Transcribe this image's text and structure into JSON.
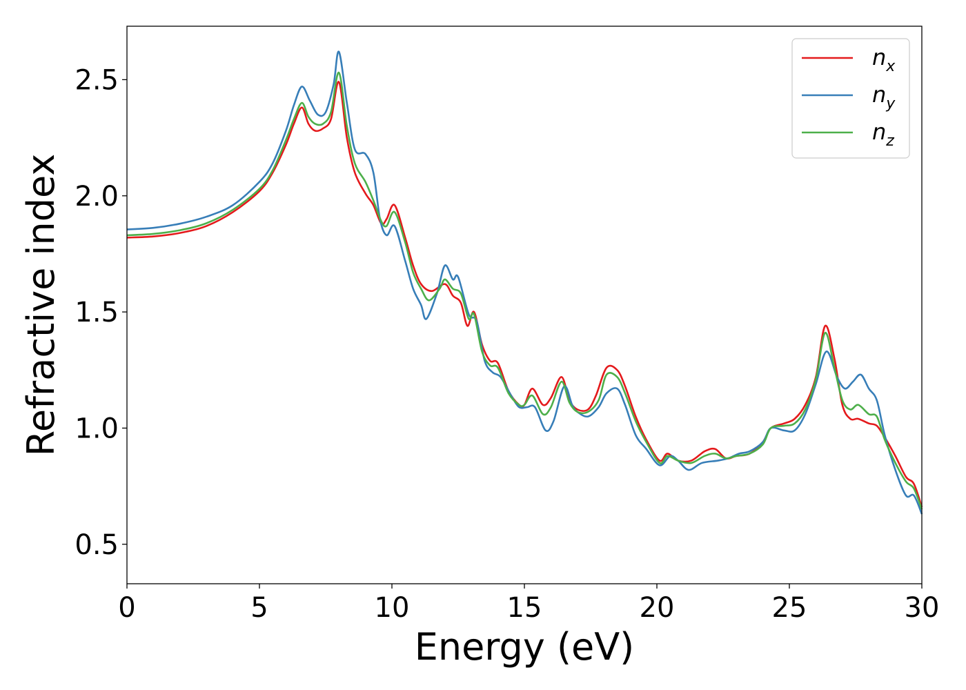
{
  "chart_data": {
    "type": "line",
    "title": "",
    "xlabel": "Energy (eV)",
    "ylabel": "Refractive index",
    "xlim": [
      0,
      30
    ],
    "ylim": [
      0.33,
      2.73
    ],
    "xticks": [
      0,
      5,
      10,
      15,
      20,
      25,
      30
    ],
    "xtick_labels": [
      "0",
      "5",
      "10",
      "15",
      "20",
      "25",
      "30"
    ],
    "yticks": [
      0.5,
      1.0,
      1.5,
      2.0,
      2.5
    ],
    "ytick_labels": [
      "0.5",
      "1.0",
      "1.5",
      "2.0",
      "2.5"
    ],
    "grid": false,
    "legend": {
      "position": "top-right"
    },
    "series": [
      {
        "name": "n_x",
        "base": "n",
        "sub": "x",
        "color": "#e41a1c",
        "points": [
          [
            0,
            1.82
          ],
          [
            1,
            1.825
          ],
          [
            2,
            1.84
          ],
          [
            3,
            1.87
          ],
          [
            4,
            1.93
          ],
          [
            5,
            2.02
          ],
          [
            5.5,
            2.1
          ],
          [
            6,
            2.22
          ],
          [
            6.3,
            2.31
          ],
          [
            6.6,
            2.38
          ],
          [
            6.85,
            2.31
          ],
          [
            7.1,
            2.28
          ],
          [
            7.4,
            2.29
          ],
          [
            7.7,
            2.33
          ],
          [
            8.0,
            2.49
          ],
          [
            8.3,
            2.25
          ],
          [
            8.6,
            2.1
          ],
          [
            9.0,
            2.01
          ],
          [
            9.3,
            1.96
          ],
          [
            9.6,
            1.88
          ],
          [
            9.8,
            1.9
          ],
          [
            10.1,
            1.96
          ],
          [
            10.5,
            1.82
          ],
          [
            10.8,
            1.7
          ],
          [
            11.1,
            1.62
          ],
          [
            11.5,
            1.59
          ],
          [
            12.0,
            1.62
          ],
          [
            12.3,
            1.57
          ],
          [
            12.6,
            1.54
          ],
          [
            12.85,
            1.44
          ],
          [
            13.1,
            1.5
          ],
          [
            13.4,
            1.36
          ],
          [
            13.7,
            1.29
          ],
          [
            14.0,
            1.28
          ],
          [
            14.4,
            1.16
          ],
          [
            14.8,
            1.1
          ],
          [
            15.0,
            1.1
          ],
          [
            15.3,
            1.17
          ],
          [
            15.7,
            1.1
          ],
          [
            16.0,
            1.13
          ],
          [
            16.4,
            1.22
          ],
          [
            16.7,
            1.12
          ],
          [
            17.0,
            1.08
          ],
          [
            17.4,
            1.08
          ],
          [
            17.7,
            1.14
          ],
          [
            18.1,
            1.26
          ],
          [
            18.5,
            1.25
          ],
          [
            18.8,
            1.18
          ],
          [
            19.2,
            1.05
          ],
          [
            19.6,
            0.95
          ],
          [
            20.1,
            0.86
          ],
          [
            20.4,
            0.89
          ],
          [
            20.8,
            0.86
          ],
          [
            21.3,
            0.86
          ],
          [
            21.8,
            0.9
          ],
          [
            22.2,
            0.91
          ],
          [
            22.6,
            0.87
          ],
          [
            23.0,
            0.88
          ],
          [
            23.5,
            0.89
          ],
          [
            24.0,
            0.94
          ],
          [
            24.3,
            1.0
          ],
          [
            24.8,
            1.02
          ],
          [
            25.2,
            1.04
          ],
          [
            25.6,
            1.1
          ],
          [
            26.0,
            1.22
          ],
          [
            26.35,
            1.44
          ],
          [
            26.7,
            1.3
          ],
          [
            27.0,
            1.1
          ],
          [
            27.3,
            1.04
          ],
          [
            27.6,
            1.04
          ],
          [
            28.0,
            1.02
          ],
          [
            28.3,
            1.01
          ],
          [
            28.6,
            0.96
          ],
          [
            29.0,
            0.88
          ],
          [
            29.4,
            0.79
          ],
          [
            29.7,
            0.76
          ],
          [
            30,
            0.66
          ]
        ]
      },
      {
        "name": "n_y",
        "base": "n",
        "sub": "y",
        "color": "#377eb8",
        "points": [
          [
            0,
            1.855
          ],
          [
            1,
            1.862
          ],
          [
            2,
            1.88
          ],
          [
            3,
            1.91
          ],
          [
            4,
            1.96
          ],
          [
            5,
            2.06
          ],
          [
            5.5,
            2.14
          ],
          [
            6,
            2.28
          ],
          [
            6.3,
            2.39
          ],
          [
            6.6,
            2.47
          ],
          [
            6.9,
            2.41
          ],
          [
            7.2,
            2.35
          ],
          [
            7.5,
            2.36
          ],
          [
            7.8,
            2.48
          ],
          [
            8.0,
            2.62
          ],
          [
            8.3,
            2.4
          ],
          [
            8.6,
            2.2
          ],
          [
            9.0,
            2.18
          ],
          [
            9.3,
            2.1
          ],
          [
            9.55,
            1.9
          ],
          [
            9.8,
            1.83
          ],
          [
            10.1,
            1.87
          ],
          [
            10.5,
            1.72
          ],
          [
            10.8,
            1.6
          ],
          [
            11.1,
            1.53
          ],
          [
            11.3,
            1.47
          ],
          [
            11.7,
            1.58
          ],
          [
            12.0,
            1.7
          ],
          [
            12.3,
            1.64
          ],
          [
            12.5,
            1.65
          ],
          [
            12.9,
            1.49
          ],
          [
            13.2,
            1.46
          ],
          [
            13.5,
            1.29
          ],
          [
            13.8,
            1.24
          ],
          [
            14.1,
            1.22
          ],
          [
            14.5,
            1.14
          ],
          [
            14.8,
            1.09
          ],
          [
            15.1,
            1.09
          ],
          [
            15.4,
            1.09
          ],
          [
            15.8,
            0.99
          ],
          [
            16.1,
            1.03
          ],
          [
            16.5,
            1.18
          ],
          [
            16.8,
            1.1
          ],
          [
            17.0,
            1.07
          ],
          [
            17.4,
            1.05
          ],
          [
            17.8,
            1.09
          ],
          [
            18.1,
            1.15
          ],
          [
            18.5,
            1.17
          ],
          [
            18.8,
            1.1
          ],
          [
            19.2,
            0.97
          ],
          [
            19.6,
            0.91
          ],
          [
            20.1,
            0.84
          ],
          [
            20.5,
            0.88
          ],
          [
            20.8,
            0.86
          ],
          [
            21.2,
            0.82
          ],
          [
            21.7,
            0.85
          ],
          [
            22.3,
            0.86
          ],
          [
            22.7,
            0.87
          ],
          [
            23.1,
            0.89
          ],
          [
            23.5,
            0.9
          ],
          [
            24.0,
            0.94
          ],
          [
            24.3,
            1.0
          ],
          [
            24.8,
            0.99
          ],
          [
            25.2,
            0.99
          ],
          [
            25.6,
            1.06
          ],
          [
            26.0,
            1.19
          ],
          [
            26.4,
            1.33
          ],
          [
            26.8,
            1.22
          ],
          [
            27.1,
            1.17
          ],
          [
            27.4,
            1.2
          ],
          [
            27.7,
            1.23
          ],
          [
            28.0,
            1.17
          ],
          [
            28.3,
            1.12
          ],
          [
            28.6,
            0.97
          ],
          [
            29.0,
            0.82
          ],
          [
            29.4,
            0.71
          ],
          [
            29.7,
            0.71
          ],
          [
            30,
            0.63
          ]
        ]
      },
      {
        "name": "n_z",
        "base": "n",
        "sub": "z",
        "color": "#4daf4a",
        "points": [
          [
            0,
            1.83
          ],
          [
            1,
            1.836
          ],
          [
            2,
            1.852
          ],
          [
            3,
            1.882
          ],
          [
            4,
            1.94
          ],
          [
            5,
            2.03
          ],
          [
            5.5,
            2.11
          ],
          [
            6,
            2.24
          ],
          [
            6.3,
            2.33
          ],
          [
            6.6,
            2.4
          ],
          [
            6.85,
            2.34
          ],
          [
            7.1,
            2.31
          ],
          [
            7.4,
            2.31
          ],
          [
            7.7,
            2.36
          ],
          [
            8.0,
            2.53
          ],
          [
            8.3,
            2.3
          ],
          [
            8.6,
            2.14
          ],
          [
            9.0,
            2.06
          ],
          [
            9.3,
            1.98
          ],
          [
            9.6,
            1.89
          ],
          [
            9.8,
            1.87
          ],
          [
            10.1,
            1.93
          ],
          [
            10.5,
            1.8
          ],
          [
            10.8,
            1.67
          ],
          [
            11.1,
            1.6
          ],
          [
            11.4,
            1.55
          ],
          [
            11.8,
            1.6
          ],
          [
            12.0,
            1.64
          ],
          [
            12.3,
            1.6
          ],
          [
            12.6,
            1.58
          ],
          [
            12.9,
            1.47
          ],
          [
            13.1,
            1.49
          ],
          [
            13.4,
            1.33
          ],
          [
            13.7,
            1.27
          ],
          [
            14.0,
            1.26
          ],
          [
            14.4,
            1.15
          ],
          [
            14.8,
            1.1
          ],
          [
            15.0,
            1.1
          ],
          [
            15.3,
            1.14
          ],
          [
            15.7,
            1.06
          ],
          [
            16.0,
            1.09
          ],
          [
            16.4,
            1.2
          ],
          [
            16.7,
            1.11
          ],
          [
            17.0,
            1.07
          ],
          [
            17.4,
            1.07
          ],
          [
            17.8,
            1.12
          ],
          [
            18.1,
            1.23
          ],
          [
            18.5,
            1.22
          ],
          [
            18.8,
            1.15
          ],
          [
            19.2,
            1.03
          ],
          [
            19.6,
            0.94
          ],
          [
            20.1,
            0.85
          ],
          [
            20.4,
            0.88
          ],
          [
            20.8,
            0.86
          ],
          [
            21.3,
            0.85
          ],
          [
            21.8,
            0.88
          ],
          [
            22.2,
            0.89
          ],
          [
            22.6,
            0.87
          ],
          [
            23.0,
            0.88
          ],
          [
            23.5,
            0.89
          ],
          [
            24.0,
            0.93
          ],
          [
            24.3,
            1.0
          ],
          [
            24.8,
            1.01
          ],
          [
            25.2,
            1.02
          ],
          [
            25.6,
            1.08
          ],
          [
            26.0,
            1.21
          ],
          [
            26.35,
            1.41
          ],
          [
            26.7,
            1.26
          ],
          [
            27.0,
            1.12
          ],
          [
            27.3,
            1.08
          ],
          [
            27.6,
            1.1
          ],
          [
            28.0,
            1.06
          ],
          [
            28.3,
            1.05
          ],
          [
            28.6,
            0.95
          ],
          [
            29.0,
            0.85
          ],
          [
            29.4,
            0.77
          ],
          [
            29.7,
            0.74
          ],
          [
            30,
            0.65
          ]
        ]
      }
    ]
  }
}
